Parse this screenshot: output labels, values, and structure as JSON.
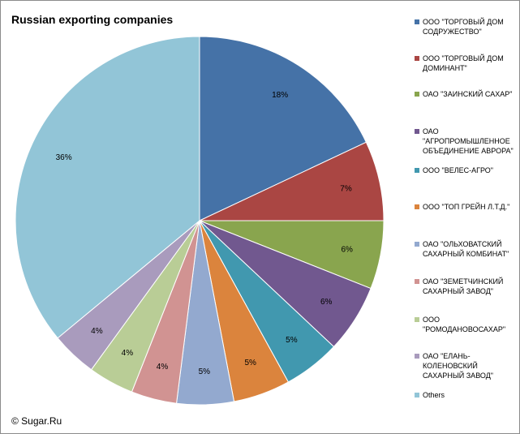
{
  "chart_data": {
    "type": "pie",
    "title": "Russian exporting companies",
    "legend_position": "right",
    "slices": [
      {
        "label": "ООО \"ТОРГОВЫЙ ДОМ СОДРУЖЕСТВО\"",
        "value": 18,
        "value_label": "18%",
        "color": "#4572a7"
      },
      {
        "label": "ООО \"ТОРГОВЫЙ ДОМ ДОМИНАНТ\"",
        "value": 7,
        "value_label": "7%",
        "color": "#aa4643"
      },
      {
        "label": "ОАО \"ЗАИНСКИЙ САХАР\"",
        "value": 6,
        "value_label": "6%",
        "color": "#89a54e"
      },
      {
        "label": "ОАО \"АГРОПРОМЫШЛЕННОЕ ОБЪЕДИНЕНИЕ АВРОРА\"",
        "value": 6,
        "value_label": "6%",
        "color": "#71588f"
      },
      {
        "label": "ООО \"ВЕЛЕС-АГРО\"",
        "value": 5,
        "value_label": "5%",
        "color": "#4198af"
      },
      {
        "label": "ООО \"ТОП ГРЕЙН Л.Т.Д.\"",
        "value": 5,
        "value_label": "5%",
        "color": "#db843d"
      },
      {
        "label": "ОАО \"ОЛЬХОВАТСКИЙ САХАРНЫЙ КОМБИНАТ\"",
        "value": 5,
        "value_label": "5%",
        "color": "#93a9cf"
      },
      {
        "label": "ОАО \"ЗЕМЕТЧИНСКИЙ САХАРНЫЙ ЗАВОД\"",
        "value": 4,
        "value_label": "4%",
        "color": "#d19392"
      },
      {
        "label": "ООО \"РОМОДАНОВОСАХАР\"",
        "value": 4,
        "value_label": "4%",
        "color": "#b9cd96"
      },
      {
        "label": "ОАО \"ЕЛАНЬ-КОЛЕНОВСКИЙ САХАРНЫЙ ЗАВОД\"",
        "value": 4,
        "value_label": "4%",
        "color": "#a99bbd"
      },
      {
        "label": "Others",
        "value": 36,
        "value_label": "36%",
        "color": "#92c5d7"
      }
    ]
  },
  "footer": {
    "copyright": "© Sugar.Ru"
  }
}
